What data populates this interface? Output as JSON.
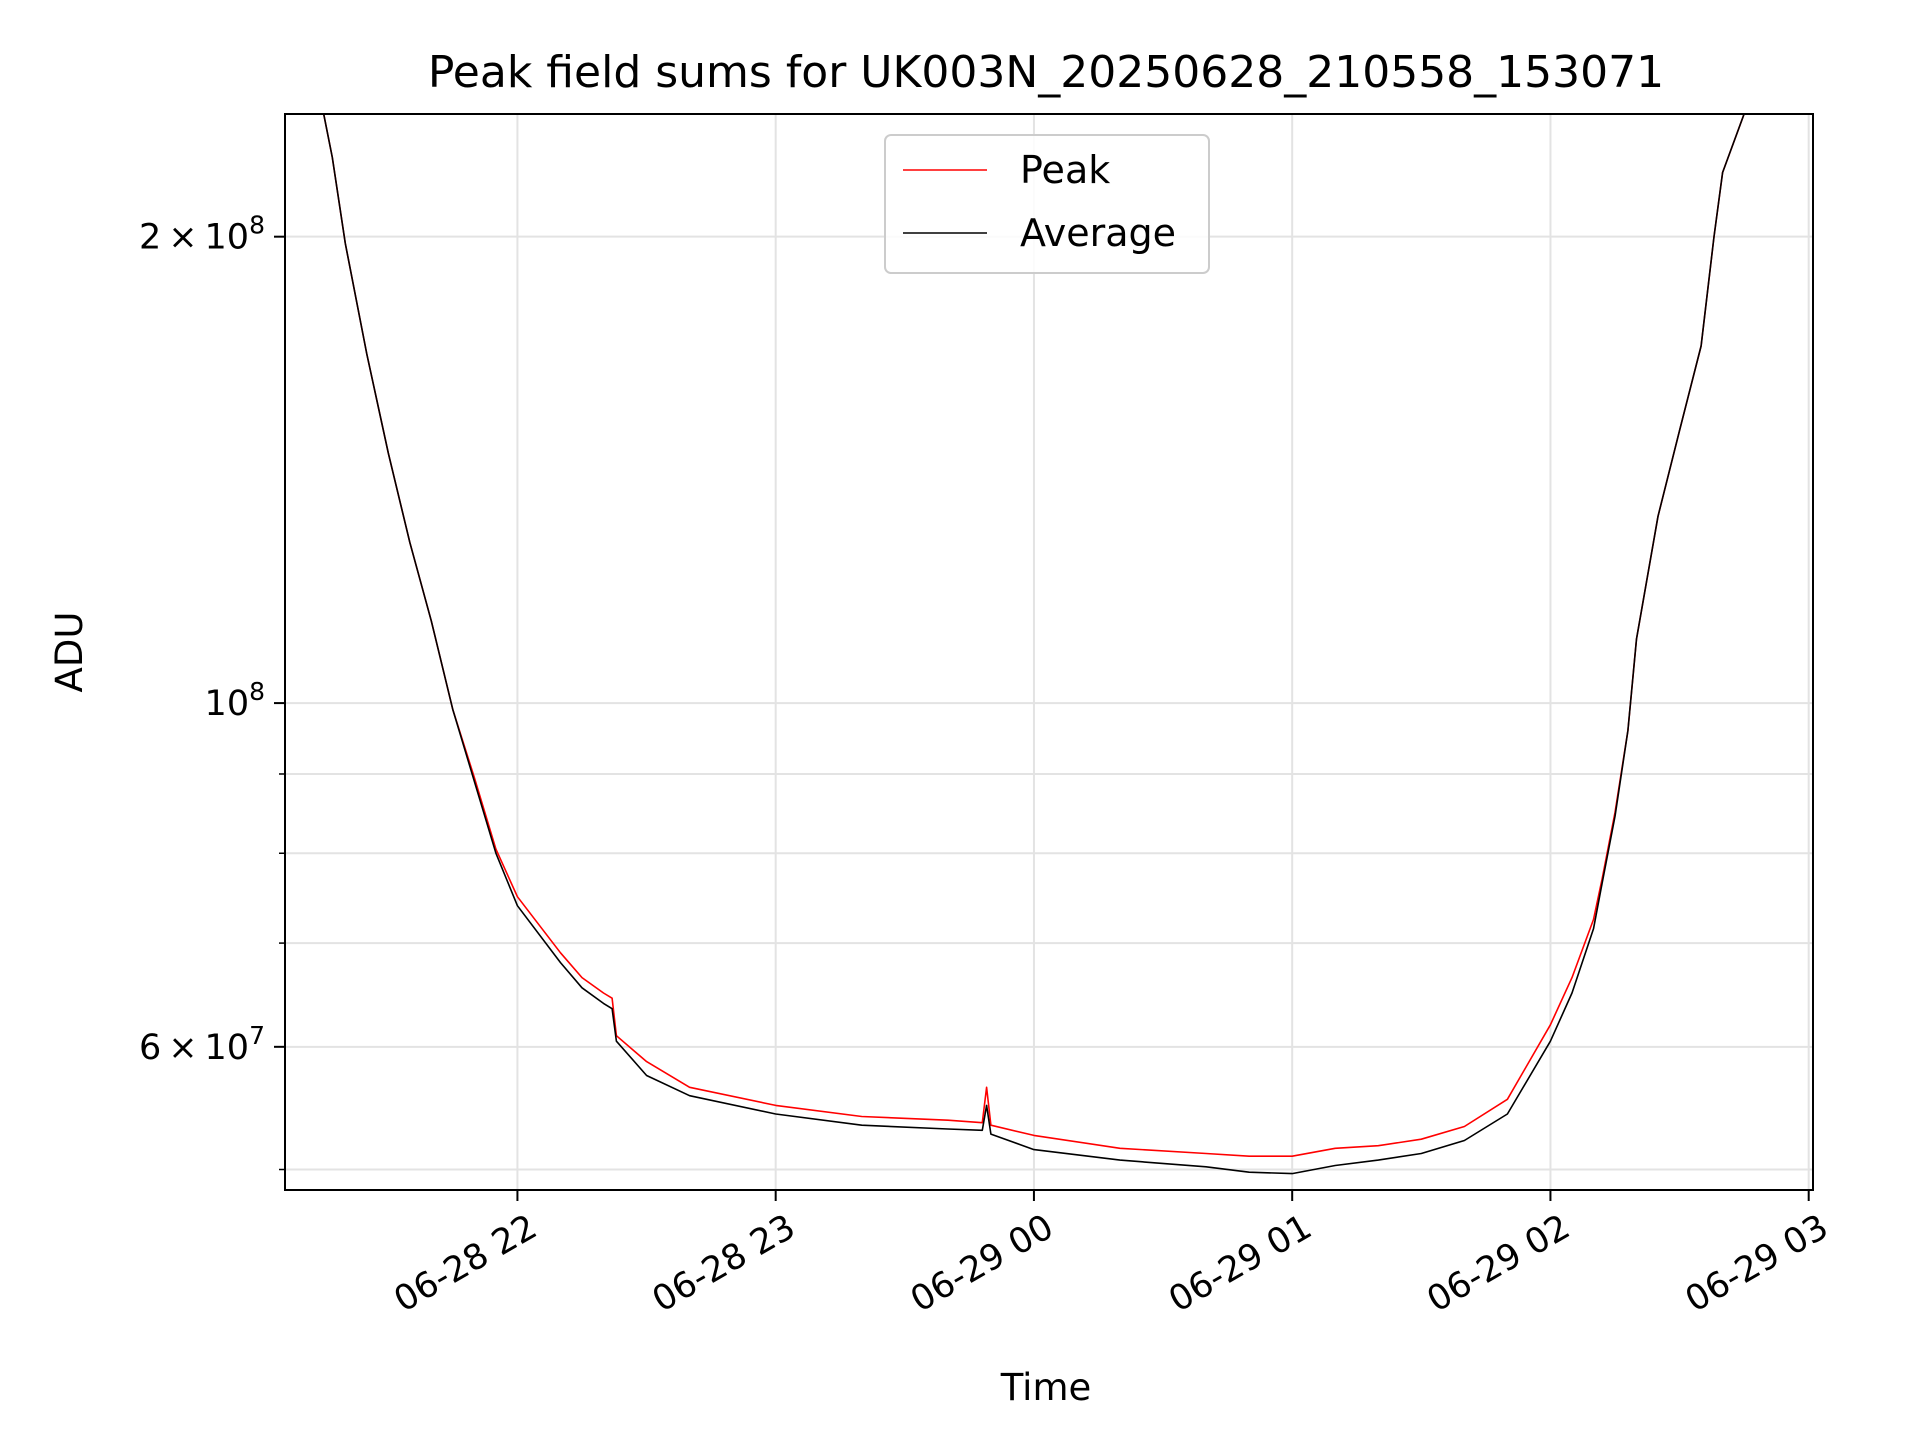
{
  "chart_data": {
    "type": "line",
    "title": "Peak field sums for UK003N_20250628_210558_153071",
    "xlabel": "Time",
    "ylabel": "ADU",
    "y_scale": "log",
    "ylim": [
      48500000,
      240000000
    ],
    "xlim": [
      "2025-06-28T21:06:00",
      "2025-06-29T03:01:00"
    ],
    "grid": true,
    "legend": {
      "position": "top-center",
      "entries": [
        "Peak",
        "Average"
      ]
    },
    "x_ticks": [
      {
        "value": "2025-06-28T22:00:00",
        "label": "06-28 22"
      },
      {
        "value": "2025-06-28T23:00:00",
        "label": "06-28 23"
      },
      {
        "value": "2025-06-29T00:00:00",
        "label": "06-29 00"
      },
      {
        "value": "2025-06-29T01:00:00",
        "label": "06-29 01"
      },
      {
        "value": "2025-06-29T02:00:00",
        "label": "06-29 02"
      },
      {
        "value": "2025-06-29T03:00:00",
        "label": "06-29 03"
      }
    ],
    "y_major_ticks": [
      {
        "value": 100000000,
        "base": "10",
        "exp": "8"
      },
      {
        "value": 200000000,
        "mant": "2",
        "base": "10",
        "exp": "8"
      },
      {
        "value": 60000000,
        "mant": "6",
        "base": "10",
        "exp": "7"
      }
    ],
    "y_minor_ticks": [
      50000000,
      70000000,
      80000000,
      90000000
    ],
    "series": [
      {
        "name": "Peak",
        "color": "#ff0000",
        "x": [
          "2025-06-28T21:10:00",
          "2025-06-28T21:15:00",
          "2025-06-28T21:17:00",
          "2025-06-28T21:20:00",
          "2025-06-28T21:25:00",
          "2025-06-28T21:30:00",
          "2025-06-28T21:35:00",
          "2025-06-28T21:40:00",
          "2025-06-28T21:45:00",
          "2025-06-28T21:50:00",
          "2025-06-28T21:55:00",
          "2025-06-28T22:00:00",
          "2025-06-28T22:10:00",
          "2025-06-28T22:15:00",
          "2025-06-28T22:20:00",
          "2025-06-28T22:22:00",
          "2025-06-28T22:23:00",
          "2025-06-28T22:30:00",
          "2025-06-28T22:40:00",
          "2025-06-28T23:00:00",
          "2025-06-28T23:20:00",
          "2025-06-28T23:40:00",
          "2025-06-28T23:48:00",
          "2025-06-28T23:49:00",
          "2025-06-28T23:50:00",
          "2025-06-29T00:00:00",
          "2025-06-29T00:20:00",
          "2025-06-29T00:40:00",
          "2025-06-29T00:50:00",
          "2025-06-29T01:00:00",
          "2025-06-29T01:10:00",
          "2025-06-29T01:20:00",
          "2025-06-29T01:30:00",
          "2025-06-29T01:40:00",
          "2025-06-29T01:50:00",
          "2025-06-29T02:00:00",
          "2025-06-29T02:05:00",
          "2025-06-29T02:10:00",
          "2025-06-29T02:12:00",
          "2025-06-29T02:15:00",
          "2025-06-29T02:18:00",
          "2025-06-29T02:20:00",
          "2025-06-29T02:25:00",
          "2025-06-29T02:30:00",
          "2025-06-29T02:35:00",
          "2025-06-29T02:38:00",
          "2025-06-29T02:40:00",
          "2025-06-29T02:45:00",
          "2025-06-29T02:50:00"
        ],
        "y": [
          240000000,
          240000000,
          225000000,
          198000000,
          168000000,
          145000000,
          127000000,
          113000000,
          99000000,
          89500000,
          80500000,
          75000000,
          69000000,
          66500000,
          65000000,
          64500000,
          61000000,
          58700000,
          56500000,
          55000000,
          54100000,
          53800000,
          53600000,
          56500000,
          53400000,
          52600000,
          51600000,
          51200000,
          51000000,
          51000000,
          51600000,
          51800000,
          52300000,
          53300000,
          55500000,
          62000000,
          66500000,
          72500000,
          77000000,
          85000000,
          96000000,
          110000000,
          132000000,
          150000000,
          170000000,
          200000000,
          220000000,
          240000000,
          240000000
        ]
      },
      {
        "name": "Average",
        "color": "#000000",
        "x": [
          "2025-06-28T21:10:00",
          "2025-06-28T21:15:00",
          "2025-06-28T21:17:00",
          "2025-06-28T21:20:00",
          "2025-06-28T21:25:00",
          "2025-06-28T21:30:00",
          "2025-06-28T21:35:00",
          "2025-06-28T21:40:00",
          "2025-06-28T21:45:00",
          "2025-06-28T21:50:00",
          "2025-06-28T21:55:00",
          "2025-06-28T22:00:00",
          "2025-06-28T22:10:00",
          "2025-06-28T22:15:00",
          "2025-06-28T22:20:00",
          "2025-06-28T22:22:00",
          "2025-06-28T22:23:00",
          "2025-06-28T22:30:00",
          "2025-06-28T22:40:00",
          "2025-06-28T23:00:00",
          "2025-06-28T23:20:00",
          "2025-06-28T23:40:00",
          "2025-06-28T23:48:00",
          "2025-06-28T23:49:00",
          "2025-06-28T23:50:00",
          "2025-06-29T00:00:00",
          "2025-06-29T00:20:00",
          "2025-06-29T00:40:00",
          "2025-06-29T00:50:00",
          "2025-06-29T01:00:00",
          "2025-06-29T01:10:00",
          "2025-06-29T01:20:00",
          "2025-06-29T01:30:00",
          "2025-06-29T01:40:00",
          "2025-06-29T01:50:00",
          "2025-06-29T02:00:00",
          "2025-06-29T02:05:00",
          "2025-06-29T02:10:00",
          "2025-06-29T02:12:00",
          "2025-06-29T02:15:00",
          "2025-06-29T02:18:00",
          "2025-06-29T02:20:00",
          "2025-06-29T02:25:00",
          "2025-06-29T02:30:00",
          "2025-06-29T02:35:00",
          "2025-06-29T02:38:00",
          "2025-06-29T02:40:00",
          "2025-06-29T02:45:00",
          "2025-06-29T02:50:00"
        ],
        "y": [
          240000000,
          240000000,
          225000000,
          198000000,
          168000000,
          145000000,
          127000000,
          113000000,
          99000000,
          89000000,
          80000000,
          74000000,
          68000000,
          65500000,
          64000000,
          63500000,
          60500000,
          57500000,
          55800000,
          54300000,
          53400000,
          53100000,
          53000000,
          55000000,
          52700000,
          51500000,
          50700000,
          50200000,
          49800000,
          49700000,
          50300000,
          50700000,
          51200000,
          52200000,
          54300000,
          60500000,
          65000000,
          71500000,
          76500000,
          84500000,
          96000000,
          110000000,
          132000000,
          150000000,
          170000000,
          200000000,
          220000000,
          240000000,
          240000000
        ]
      }
    ]
  }
}
